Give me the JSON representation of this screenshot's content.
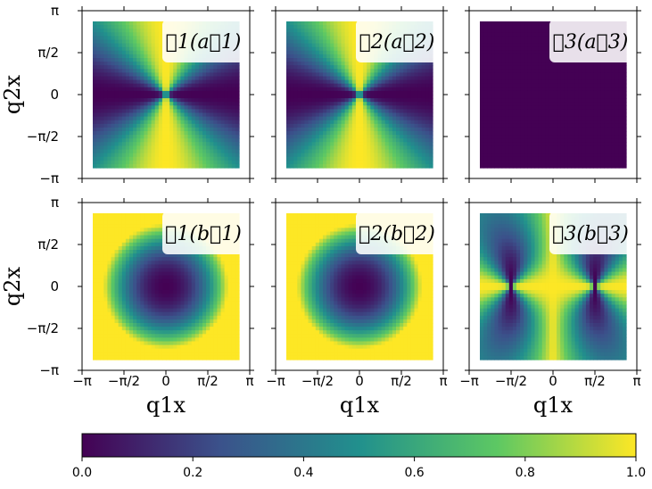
{
  "chart_data": {
    "type": "heatmap",
    "colormap": "viridis",
    "colors": [
      "#440154",
      "#3b528b",
      "#21908d",
      "#5dc863",
      "#fde725"
    ],
    "x_range": [
      "-π",
      "π"
    ],
    "y_range": [
      "-π",
      "π"
    ],
    "x_ticks": [
      "−π",
      "−π/2",
      "0",
      "π/2",
      "π"
    ],
    "y_ticks": [
      "π",
      "π/2",
      "0",
      "−π/2",
      "−π"
    ],
    "xlabel": "q1x",
    "ylabel": "q2x",
    "panels": [
      {
        "label": "𝒢1(a⃗1)",
        "pattern": "angular_cos2"
      },
      {
        "label": "𝒢2(a⃗2)",
        "pattern": "angular_cos2"
      },
      {
        "label": "𝒢3(a⃗3)",
        "pattern": "zero"
      },
      {
        "label": "𝒢1(b⃗1)",
        "pattern": "radial"
      },
      {
        "label": "𝒢2(b⃗2)",
        "pattern": "radial"
      },
      {
        "label": "𝒢3(b⃗3)",
        "pattern": "two_vortex"
      }
    ],
    "colorbar": {
      "min": 0.0,
      "max": 1.0,
      "ticks": [
        "0.0",
        "0.2",
        "0.4",
        "0.6",
        "0.8",
        "1.0"
      ]
    }
  }
}
